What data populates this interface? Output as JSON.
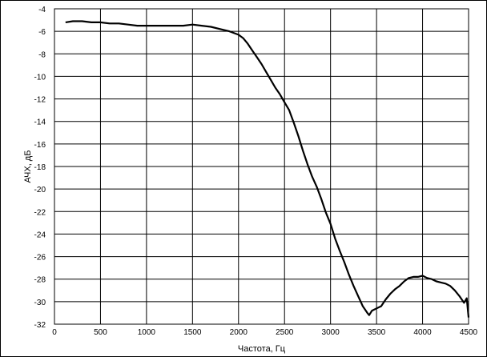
{
  "chart_data": {
    "type": "line",
    "title": "",
    "xlabel": "Частота, Гц",
    "ylabel": "АЧХ, дБ",
    "xlim": [
      0,
      4500
    ],
    "ylim": [
      -32,
      -4
    ],
    "xticks": [
      0,
      500,
      1000,
      1500,
      2000,
      2500,
      3000,
      3500,
      4000,
      4500
    ],
    "yticks": [
      -4,
      -6,
      -8,
      -10,
      -12,
      -14,
      -16,
      -18,
      -20,
      -22,
      -24,
      -26,
      -28,
      -30,
      -32
    ],
    "grid": true,
    "legend": "none",
    "colors": {
      "line": "#000000",
      "grid": "#000000",
      "background": "#ffffff"
    },
    "series": [
      {
        "x": [
          120,
          200,
          300,
          400,
          500,
          600,
          700,
          800,
          900,
          1000,
          1100,
          1200,
          1300,
          1400,
          1500,
          1600,
          1700,
          1800,
          1900,
          2000,
          2050,
          2100,
          2150,
          2200,
          2250,
          2300,
          2350,
          2400,
          2450,
          2500,
          2550,
          2600,
          2650,
          2700,
          2750,
          2800,
          2850,
          2900,
          2950,
          3000,
          3050,
          3100,
          3150,
          3200,
          3250,
          3300,
          3350,
          3400,
          3420,
          3450,
          3500,
          3550,
          3600,
          3650,
          3700,
          3750,
          3800,
          3850,
          3900,
          3950,
          4000,
          4050,
          4100,
          4150,
          4200,
          4250,
          4300,
          4350,
          4400,
          4450,
          4480,
          4500
        ],
        "y": [
          -5.2,
          -5.1,
          -5.1,
          -5.2,
          -5.2,
          -5.3,
          -5.3,
          -5.4,
          -5.5,
          -5.5,
          -5.5,
          -5.5,
          -5.5,
          -5.5,
          -5.4,
          -5.5,
          -5.6,
          -5.8,
          -6.0,
          -6.3,
          -6.6,
          -7.1,
          -7.7,
          -8.3,
          -8.9,
          -9.6,
          -10.3,
          -11.0,
          -11.6,
          -12.3,
          -13.0,
          -14.1,
          -15.3,
          -16.6,
          -17.8,
          -18.9,
          -19.8,
          -20.9,
          -22.1,
          -23.1,
          -24.4,
          -25.5,
          -26.5,
          -27.6,
          -28.6,
          -29.5,
          -30.4,
          -31.0,
          -31.2,
          -30.8,
          -30.6,
          -30.4,
          -29.8,
          -29.3,
          -28.9,
          -28.6,
          -28.2,
          -27.9,
          -27.8,
          -27.8,
          -27.7,
          -27.9,
          -28.0,
          -28.2,
          -28.3,
          -28.4,
          -28.6,
          -29.0,
          -29.5,
          -30.1,
          -29.7,
          -31.4
        ]
      }
    ]
  }
}
